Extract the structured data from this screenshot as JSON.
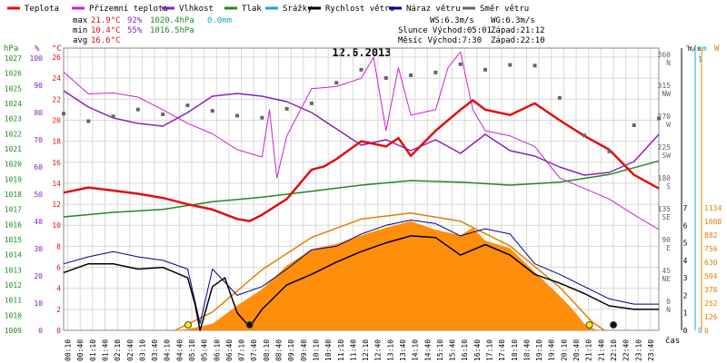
{
  "chart_data": {
    "type": "line",
    "title": "12.6.2013",
    "legend": [
      {
        "name": "Teplota",
        "color": "#e01010"
      },
      {
        "name": "Přízemní teplota",
        "color": "#cc22cc"
      },
      {
        "name": "Vlhkost",
        "color": "#8822bb"
      },
      {
        "name": "Tlak",
        "color": "#228822"
      },
      {
        "name": "Srážky",
        "color": "#11aacc"
      },
      {
        "name": "Rychlost větru",
        "color": "#000000"
      },
      {
        "name": "Náraz větru",
        "color": "#000088"
      },
      {
        "name": "Směr větru",
        "color": "#666666"
      }
    ],
    "stats": {
      "max_label": "max",
      "max_temp": "21.9°C",
      "max_hum": "92%",
      "max_press": "1020.4hPa",
      "rain": "0.0mm",
      "min_label": "min",
      "min_temp": "10.4°C",
      "min_hum": "55%",
      "min_press": "1016.5hPa",
      "avg_label": "avg",
      "avg_temp": "16.6°C"
    },
    "info": {
      "ws": "WS:6.3m/s",
      "wg": "WG:6.3m/s",
      "sun": "Slunce Východ:05:01",
      "sunset": "Západ:21:12",
      "moon": "Měsíc  Východ:7:30",
      "moonset": "Západ:22:10"
    },
    "units": {
      "hpa": "hPa",
      "pct": "%",
      "degc": "°C",
      "deg": "°",
      "ms": "m/s",
      "mm": "mm",
      "w": "W",
      "cas": "čas"
    },
    "axes": {
      "pressure_ticks": [
        1009,
        1010,
        1011,
        1012,
        1013,
        1014,
        1015,
        1016,
        1017,
        1018,
        1019,
        1020,
        1021,
        1022,
        1023,
        1024,
        1025,
        1026,
        1027
      ],
      "humidity_ticks": [
        0,
        10,
        20,
        30,
        40,
        50,
        60,
        70,
        80,
        90,
        100
      ],
      "temp_ticks": [
        0,
        2,
        4,
        6,
        8,
        10,
        12,
        14,
        16,
        18,
        20,
        22,
        24,
        26
      ],
      "dir_ticks": [
        {
          "v": 0,
          "l": "0"
        },
        {
          "v": 45,
          "l": "45"
        },
        {
          "v": 90,
          "l": "90"
        },
        {
          "v": 135,
          "l": "135"
        },
        {
          "v": 180,
          "l": "180"
        },
        {
          "v": 225,
          "l": "225"
        },
        {
          "v": 270,
          "l": "270"
        },
        {
          "v": 315,
          "l": "315"
        },
        {
          "v": 360,
          "l": "360"
        }
      ],
      "dir_letters": [
        {
          "v": 0,
          "l": "N"
        },
        {
          "v": 45,
          "l": "NE"
        },
        {
          "v": 90,
          "l": "E"
        },
        {
          "v": 135,
          "l": "SE"
        },
        {
          "v": 180,
          "l": "S"
        },
        {
          "v": 225,
          "l": "SW"
        },
        {
          "v": 270,
          "l": "W"
        },
        {
          "v": 315,
          "l": "NW"
        },
        {
          "v": 360,
          "l": "N"
        }
      ],
      "wind_ticks": [
        0,
        1,
        2,
        3,
        4,
        5,
        6,
        7
      ],
      "rain_ticks": [
        0,
        1
      ],
      "solar_ticks": [
        0,
        126,
        252,
        378,
        504,
        630,
        756,
        882,
        1008,
        1134
      ],
      "x_labels": [
        "00:10",
        "00:40",
        "01:10",
        "01:40",
        "02:10",
        "02:40",
        "03:10",
        "03:40",
        "04:10",
        "04:40",
        "05:10",
        "05:40",
        "06:10",
        "06:40",
        "07:10",
        "07:40",
        "08:10",
        "08:40",
        "09:10",
        "09:40",
        "10:10",
        "10:40",
        "11:10",
        "11:40",
        "12:10",
        "12:40",
        "13:10",
        "13:40",
        "14:10",
        "14:40",
        "15:10",
        "15:40",
        "16:10",
        "16:40",
        "17:10",
        "17:40",
        "18:10",
        "18:40",
        "19:10",
        "19:40",
        "20:10",
        "20:40",
        "21:10",
        "21:40",
        "22:10",
        "22:40",
        "23:10",
        "23:40"
      ],
      "x_start_hour": 0.1667,
      "x_step_hours": 0.5
    },
    "series": {
      "temperature": [
        [
          0,
          13.1
        ],
        [
          1,
          13.6
        ],
        [
          2,
          13.3
        ],
        [
          3,
          13.0
        ],
        [
          4,
          12.6
        ],
        [
          5,
          12.0
        ],
        [
          6,
          11.5
        ],
        [
          7,
          10.6
        ],
        [
          7.5,
          10.4
        ],
        [
          8,
          11.0
        ],
        [
          9,
          12.5
        ],
        [
          10,
          15.3
        ],
        [
          10.5,
          15.6
        ],
        [
          11,
          16.3
        ],
        [
          12,
          18.0
        ],
        [
          13,
          17.5
        ],
        [
          13.5,
          18.3
        ],
        [
          14,
          16.6
        ],
        [
          15,
          19.0
        ],
        [
          16,
          21.0
        ],
        [
          16.5,
          21.9
        ],
        [
          17,
          21.0
        ],
        [
          18,
          20.5
        ],
        [
          19,
          21.6
        ],
        [
          20,
          20.0
        ],
        [
          21,
          18.5
        ],
        [
          22,
          17.2
        ],
        [
          23,
          14.8
        ],
        [
          24,
          13.5
        ]
      ],
      "apparent_temperature": [
        [
          0,
          24.6
        ],
        [
          1,
          22.5
        ],
        [
          2,
          22.6
        ],
        [
          3,
          22.2
        ],
        [
          4,
          21.0
        ],
        [
          5,
          19.7
        ],
        [
          6,
          18.7
        ],
        [
          7,
          17.2
        ],
        [
          8,
          16.5
        ],
        [
          8.3,
          21.0
        ],
        [
          8.6,
          14.5
        ],
        [
          9,
          18.5
        ],
        [
          10,
          23.0
        ],
        [
          11,
          23.2
        ],
        [
          12,
          24.0
        ],
        [
          12.5,
          26.0
        ],
        [
          13,
          19.0
        ],
        [
          13.5,
          25.0
        ],
        [
          14,
          20.5
        ],
        [
          15,
          21.0
        ],
        [
          15.5,
          25.0
        ],
        [
          16,
          26.5
        ],
        [
          16.5,
          21.0
        ],
        [
          17,
          19.0
        ],
        [
          18,
          18.5
        ],
        [
          19,
          17.5
        ],
        [
          20,
          14.5
        ],
        [
          21,
          13.5
        ],
        [
          22,
          12.5
        ],
        [
          23,
          11.0
        ],
        [
          24,
          9.6
        ]
      ],
      "humidity": [
        [
          0,
          88
        ],
        [
          1,
          82
        ],
        [
          2,
          78
        ],
        [
          3,
          76
        ],
        [
          4,
          75
        ],
        [
          5,
          80
        ],
        [
          6,
          86
        ],
        [
          7,
          87
        ],
        [
          8,
          86
        ],
        [
          9,
          84
        ],
        [
          10,
          80
        ],
        [
          11,
          74
        ],
        [
          12,
          68
        ],
        [
          13,
          70
        ],
        [
          14,
          66
        ],
        [
          15,
          70
        ],
        [
          16,
          65
        ],
        [
          17,
          72
        ],
        [
          18,
          66
        ],
        [
          19,
          64
        ],
        [
          20,
          60
        ],
        [
          21,
          57
        ],
        [
          22,
          58
        ],
        [
          23,
          62
        ],
        [
          24,
          72
        ]
      ],
      "pressure": [
        [
          0,
          1016.5
        ],
        [
          2,
          1016.8
        ],
        [
          4,
          1017.0
        ],
        [
          6,
          1017.5
        ],
        [
          8,
          1017.8
        ],
        [
          10,
          1018.2
        ],
        [
          12,
          1018.6
        ],
        [
          14,
          1018.9
        ],
        [
          16,
          1018.8
        ],
        [
          18,
          1018.6
        ],
        [
          20,
          1018.8
        ],
        [
          22,
          1019.3
        ],
        [
          24,
          1020.2
        ]
      ],
      "wind_speed": [
        [
          0,
          3.3
        ],
        [
          1,
          3.8
        ],
        [
          2,
          3.8
        ],
        [
          3,
          3.5
        ],
        [
          4,
          3.6
        ],
        [
          5,
          3.0
        ],
        [
          5.3,
          1.5
        ],
        [
          5.5,
          0.0
        ],
        [
          6,
          2.5
        ],
        [
          6.5,
          3.0
        ],
        [
          7,
          1.0
        ],
        [
          7.5,
          0.2
        ],
        [
          8,
          1.2
        ],
        [
          9,
          2.6
        ],
        [
          10,
          3.2
        ],
        [
          11,
          3.9
        ],
        [
          12,
          4.5
        ],
        [
          13,
          5.0
        ],
        [
          14,
          5.4
        ],
        [
          15,
          5.3
        ],
        [
          16,
          4.3
        ],
        [
          17,
          4.9
        ],
        [
          18,
          4.3
        ],
        [
          19,
          3.2
        ],
        [
          20,
          2.7
        ],
        [
          21,
          2.1
        ],
        [
          22,
          1.4
        ],
        [
          23,
          1.2
        ],
        [
          24,
          1.2
        ]
      ],
      "wind_gust": [
        [
          0,
          3.8
        ],
        [
          1,
          4.2
        ],
        [
          2,
          4.5
        ],
        [
          3,
          4.2
        ],
        [
          4,
          4.0
        ],
        [
          5,
          3.5
        ],
        [
          5.5,
          0.4
        ],
        [
          6,
          3.5
        ],
        [
          7,
          2.0
        ],
        [
          8,
          2.5
        ],
        [
          9,
          3.5
        ],
        [
          10,
          4.6
        ],
        [
          11,
          4.8
        ],
        [
          12,
          5.5
        ],
        [
          13,
          6.0
        ],
        [
          14,
          6.3
        ],
        [
          15,
          6.1
        ],
        [
          16,
          5.4
        ],
        [
          17,
          5.8
        ],
        [
          18,
          5.5
        ],
        [
          19,
          3.8
        ],
        [
          20,
          3.2
        ],
        [
          21,
          2.5
        ],
        [
          22,
          1.8
        ],
        [
          23,
          1.5
        ],
        [
          24,
          1.5
        ]
      ],
      "wind_direction": [
        [
          0,
          279
        ],
        [
          1,
          268
        ],
        [
          2,
          275
        ],
        [
          3,
          285
        ],
        [
          4,
          278
        ],
        [
          5,
          291
        ],
        [
          6,
          283
        ],
        [
          7,
          276
        ],
        [
          8,
          273
        ],
        [
          9,
          286
        ],
        [
          10,
          294
        ],
        [
          11,
          324
        ],
        [
          12,
          343
        ],
        [
          13,
          331
        ],
        [
          14,
          335
        ],
        [
          15,
          339
        ],
        [
          16,
          351
        ],
        [
          17,
          343
        ],
        [
          18,
          350
        ],
        [
          19,
          349
        ],
        [
          20,
          302
        ],
        [
          21,
          247
        ],
        [
          22,
          224
        ],
        [
          23,
          262
        ],
        [
          24,
          272
        ]
      ],
      "solar_radiation": [
        [
          4.5,
          0
        ],
        [
          5,
          10
        ],
        [
          6,
          60
        ],
        [
          7,
          230
        ],
        [
          8,
          380
        ],
        [
          9,
          600
        ],
        [
          10,
          750
        ],
        [
          11,
          800
        ],
        [
          12,
          880
        ],
        [
          13,
          950
        ],
        [
          14,
          1010
        ],
        [
          15,
          930
        ],
        [
          16,
          880
        ],
        [
          16.5,
          950
        ],
        [
          17,
          830
        ],
        [
          18,
          760
        ],
        [
          19,
          540
        ],
        [
          20,
          320
        ],
        [
          20.5,
          200
        ],
        [
          21,
          60
        ],
        [
          21.5,
          0
        ]
      ],
      "solar_theoretical": [
        [
          4.5,
          0
        ],
        [
          6,
          170
        ],
        [
          8,
          560
        ],
        [
          10,
          860
        ],
        [
          12,
          1030
        ],
        [
          14,
          1085
        ],
        [
          16,
          1010
        ],
        [
          18,
          780
        ],
        [
          20,
          400
        ],
        [
          21.3,
          80
        ],
        [
          21.8,
          0
        ]
      ]
    }
  }
}
